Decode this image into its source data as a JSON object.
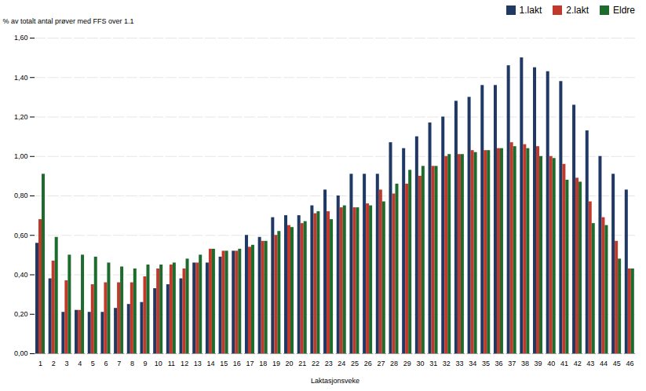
{
  "chart_data": {
    "type": "bar",
    "xlabel": "Laktasjonsveke",
    "ylabel": "% av totalt antal prøver med FFS over 1.1",
    "categories": [
      1,
      2,
      3,
      4,
      5,
      6,
      7,
      8,
      9,
      10,
      11,
      12,
      13,
      14,
      15,
      16,
      17,
      18,
      19,
      20,
      21,
      22,
      23,
      24,
      25,
      26,
      27,
      28,
      29,
      30,
      31,
      32,
      33,
      34,
      35,
      36,
      37,
      38,
      39,
      40,
      41,
      42,
      43,
      44,
      45,
      46
    ],
    "series": [
      {
        "name": "1.lakt",
        "color": "#1f3864",
        "values": [
          0.56,
          0.38,
          0.21,
          0.22,
          0.21,
          0.21,
          0.23,
          0.25,
          0.26,
          0.33,
          0.35,
          0.38,
          0.46,
          0.46,
          0.49,
          0.52,
          0.6,
          0.59,
          0.69,
          0.7,
          0.7,
          0.75,
          0.83,
          0.8,
          0.91,
          0.91,
          0.91,
          1.07,
          1.04,
          1.1,
          1.17,
          1.2,
          1.28,
          1.3,
          1.36,
          1.36,
          1.46,
          1.5,
          1.45,
          1.43,
          1.38,
          1.26,
          1.13,
          1.0,
          0.91,
          0.83
        ]
      },
      {
        "name": "2.lakt",
        "color": "#c0392b",
        "values": [
          0.68,
          0.47,
          0.37,
          0.22,
          0.35,
          0.36,
          0.36,
          0.36,
          0.39,
          0.43,
          0.45,
          0.43,
          0.46,
          0.53,
          0.52,
          0.52,
          0.54,
          0.57,
          0.6,
          0.65,
          0.66,
          0.71,
          0.72,
          0.74,
          0.74,
          0.76,
          0.83,
          0.81,
          0.86,
          0.9,
          0.95,
          1.0,
          1.01,
          1.03,
          1.03,
          1.04,
          1.07,
          1.06,
          1.05,
          1.0,
          0.96,
          0.89,
          0.77,
          0.69,
          0.57,
          0.43
        ]
      },
      {
        "name": "Eldre",
        "color": "#1e6b2e",
        "values": [
          0.91,
          0.59,
          0.5,
          0.5,
          0.49,
          0.46,
          0.44,
          0.43,
          0.45,
          0.45,
          0.46,
          0.48,
          0.5,
          0.53,
          0.52,
          0.53,
          0.55,
          0.57,
          0.62,
          0.64,
          0.67,
          0.72,
          0.68,
          0.75,
          0.74,
          0.75,
          0.77,
          0.86,
          0.93,
          0.95,
          0.95,
          1.01,
          1.01,
          1.02,
          1.03,
          1.04,
          1.05,
          1.04,
          1.0,
          0.99,
          0.88,
          0.87,
          0.66,
          0.65,
          0.48,
          0.43
        ]
      }
    ],
    "ylim": [
      0.0,
      1.6
    ],
    "yticks": [
      {
        "value": 0.0,
        "label": "0,00"
      },
      {
        "value": 0.2,
        "label": "0,20"
      },
      {
        "value": 0.4,
        "label": "0,40"
      },
      {
        "value": 0.6,
        "label": "0,60"
      },
      {
        "value": 0.8,
        "label": "0,80"
      },
      {
        "value": 1.0,
        "label": "1,00"
      },
      {
        "value": 1.2,
        "label": "1,20"
      },
      {
        "value": 1.4,
        "label": "1,40"
      },
      {
        "value": 1.6,
        "label": "1,60"
      }
    ],
    "grid": true,
    "legend": "upper right"
  }
}
